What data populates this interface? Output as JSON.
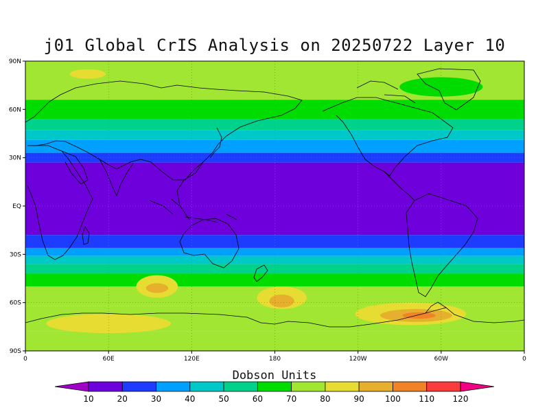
{
  "title": "j01 Global CrIS Analysis on 20250722 Layer 10",
  "map": {
    "projection": "cylindrical-equidistant",
    "lon_range": [
      0,
      360
    ],
    "lat_range": [
      -90,
      90
    ],
    "grid": "dotted",
    "x_ticks": [
      {
        "lon": 0,
        "label": "0"
      },
      {
        "lon": 60,
        "label": "60E"
      },
      {
        "lon": 120,
        "label": "120E"
      },
      {
        "lon": 180,
        "label": "180"
      },
      {
        "lon": 240,
        "label": "120W"
      },
      {
        "lon": 300,
        "label": "60W"
      },
      {
        "lon": 360,
        "label": "0"
      }
    ],
    "y_ticks": [
      {
        "lat": 90,
        "label": "90N"
      },
      {
        "lat": 60,
        "label": "60N"
      },
      {
        "lat": 30,
        "label": "30N"
      },
      {
        "lat": 0,
        "label": "EQ"
      },
      {
        "lat": -30,
        "label": "30S"
      },
      {
        "lat": -60,
        "label": "60S"
      },
      {
        "lat": -90,
        "label": "90S"
      }
    ],
    "zonal_bands": [
      {
        "lat_from": 90,
        "lat_to": 66,
        "value": 75
      },
      {
        "lat_from": 66,
        "lat_to": 54,
        "value": 65
      },
      {
        "lat_from": 54,
        "lat_to": 47,
        "value": 55
      },
      {
        "lat_from": 47,
        "lat_to": 41,
        "value": 45
      },
      {
        "lat_from": 41,
        "lat_to": 33,
        "value": 35
      },
      {
        "lat_from": 33,
        "lat_to": 27,
        "value": 25
      },
      {
        "lat_from": 27,
        "lat_to": -18,
        "value": 15
      },
      {
        "lat_from": -18,
        "lat_to": -26,
        "value": 25
      },
      {
        "lat_from": -26,
        "lat_to": -31,
        "value": 35
      },
      {
        "lat_from": -31,
        "lat_to": -36,
        "value": 45
      },
      {
        "lat_from": -36,
        "lat_to": -42,
        "value": 55
      },
      {
        "lat_from": -42,
        "lat_to": -50,
        "value": 65
      },
      {
        "lat_from": -50,
        "lat_to": -62,
        "value": 75
      },
      {
        "lat_from": -62,
        "lat_to": -78,
        "value": 75
      },
      {
        "lat_from": -78,
        "lat_to": -90,
        "value": 75
      }
    ],
    "features": [
      {
        "lon": 185,
        "lat": -57,
        "rx": 18,
        "ry": 7,
        "value": 85
      },
      {
        "lon": 185,
        "lat": -59,
        "rx": 9,
        "ry": 4,
        "value": 95
      },
      {
        "lon": 95,
        "lat": -50,
        "rx": 15,
        "ry": 7,
        "value": 85
      },
      {
        "lon": 95,
        "lat": -51,
        "rx": 8,
        "ry": 3,
        "value": 95
      },
      {
        "lon": 278,
        "lat": -67,
        "rx": 40,
        "ry": 7,
        "value": 85
      },
      {
        "lon": 282,
        "lat": -68,
        "rx": 26,
        "ry": 4,
        "value": 95
      },
      {
        "lon": 284,
        "lat": -68,
        "rx": 12,
        "ry": 2,
        "value": 105
      },
      {
        "lon": 60,
        "lat": -73,
        "rx": 45,
        "ry": 6,
        "value": 85
      },
      {
        "lon": 300,
        "lat": 74,
        "rx": 30,
        "ry": 6,
        "value": 65
      },
      {
        "lon": 45,
        "lat": 82,
        "rx": 13,
        "ry": 3,
        "value": 85
      }
    ]
  },
  "colorbar": {
    "title": "Dobson Units",
    "labels": [
      "10",
      "20",
      "30",
      "40",
      "50",
      "60",
      "70",
      "80",
      "90",
      "100",
      "110",
      "120"
    ],
    "colors": [
      "#a000c8",
      "#6e00dc",
      "#1e3cff",
      "#00a0ff",
      "#00c8c8",
      "#00d28c",
      "#00dc00",
      "#a0e632",
      "#e6dc32",
      "#e6af2d",
      "#f08228",
      "#fa3c3c",
      "#f00082"
    ]
  }
}
